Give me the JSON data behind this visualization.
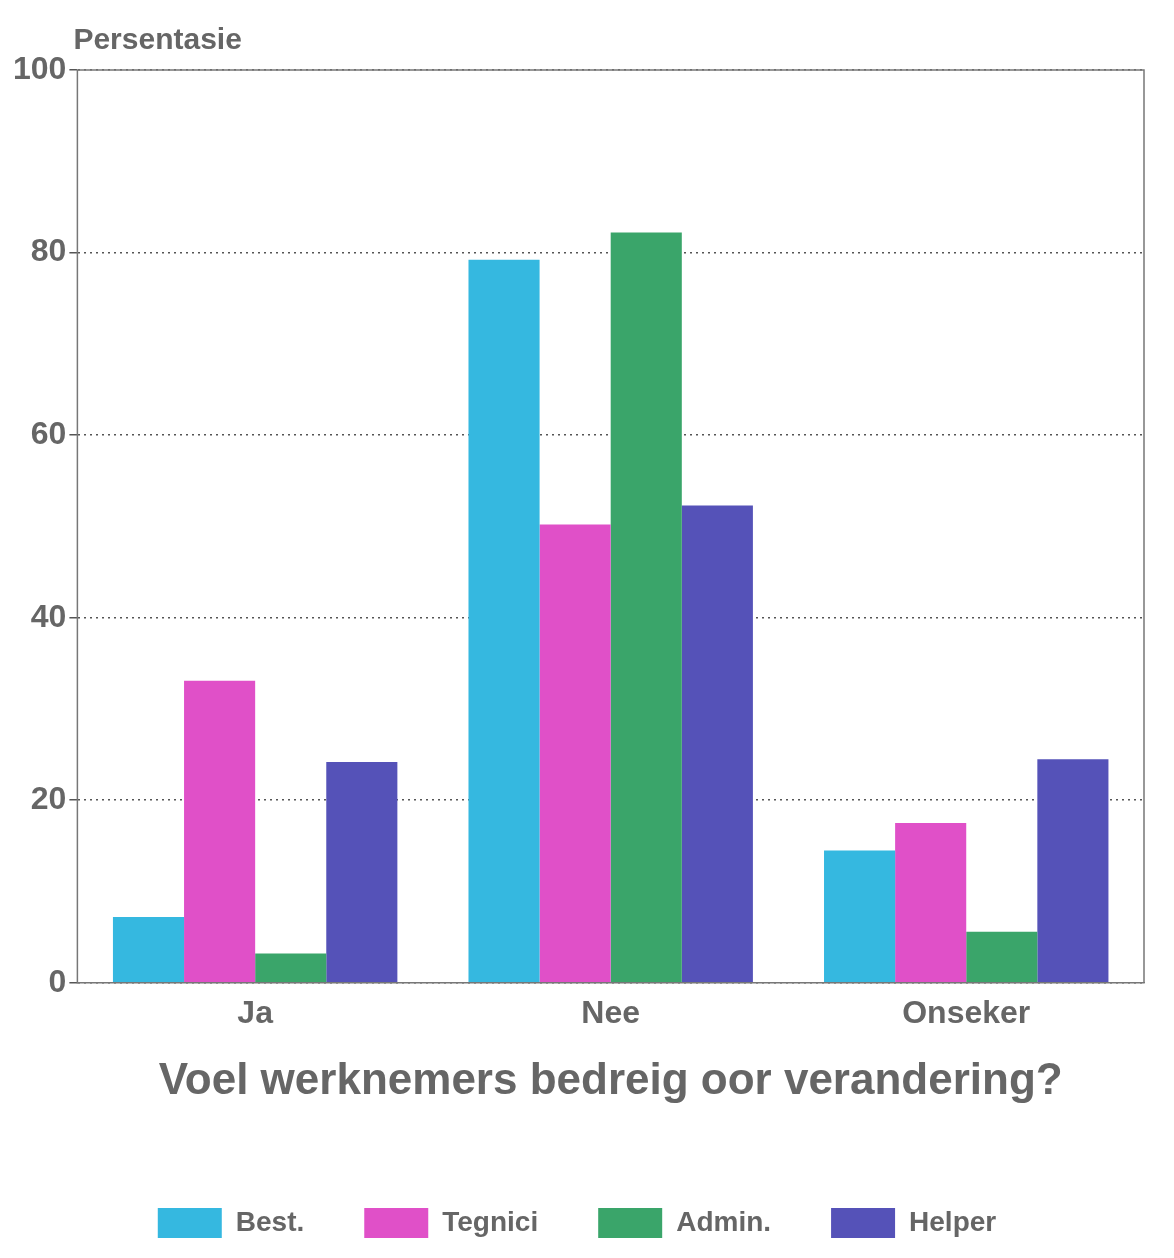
{
  "chart_data": {
    "type": "bar",
    "ylabel": "Persentasie",
    "xlabel": "Voel werknemers bedreig oor verandering?",
    "categories": [
      "Ja",
      "Nee",
      "Onseker"
    ],
    "series": [
      {
        "name": "Best.",
        "color": "#35b8e0",
        "values": [
          7.2,
          79.2,
          14.5
        ]
      },
      {
        "name": "Tegnici",
        "color": "#e050c8",
        "values": [
          33.1,
          50.2,
          17.5
        ]
      },
      {
        "name": "Admin.",
        "color": "#3aa56a",
        "values": [
          3.2,
          82.2,
          5.6
        ]
      },
      {
        "name": "Helper",
        "color": "#5552b8",
        "values": [
          24.2,
          52.3,
          24.5
        ]
      }
    ],
    "ylim": [
      0,
      100
    ],
    "yticks": [
      0,
      20,
      40,
      60,
      80,
      100
    ],
    "grid": "y",
    "legend": "bottom"
  }
}
